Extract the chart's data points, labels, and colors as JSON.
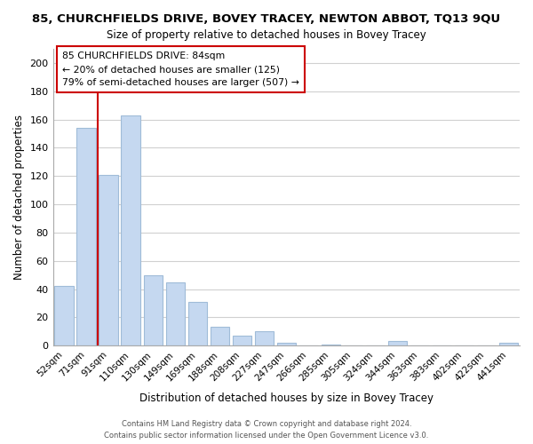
{
  "title": "85, CHURCHFIELDS DRIVE, BOVEY TRACEY, NEWTON ABBOT, TQ13 9QU",
  "subtitle": "Size of property relative to detached houses in Bovey Tracey",
  "xlabel": "Distribution of detached houses by size in Bovey Tracey",
  "ylabel": "Number of detached properties",
  "categories": [
    "52sqm",
    "71sqm",
    "91sqm",
    "110sqm",
    "130sqm",
    "149sqm",
    "169sqm",
    "188sqm",
    "208sqm",
    "227sqm",
    "247sqm",
    "266sqm",
    "285sqm",
    "305sqm",
    "324sqm",
    "344sqm",
    "363sqm",
    "383sqm",
    "402sqm",
    "422sqm",
    "441sqm"
  ],
  "values": [
    42,
    154,
    121,
    163,
    50,
    45,
    31,
    13,
    7,
    10,
    2,
    0,
    1,
    0,
    0,
    3,
    0,
    0,
    0,
    0,
    2
  ],
  "bar_color": "#c5d8f0",
  "bar_edge_color": "#a0bcd8",
  "ref_line_color": "#cc0000",
  "ref_line_x": 1.5,
  "ylim": [
    0,
    210
  ],
  "yticks": [
    0,
    20,
    40,
    60,
    80,
    100,
    120,
    140,
    160,
    180,
    200
  ],
  "annotation_title": "85 CHURCHFIELDS DRIVE: 84sqm",
  "annotation_line1": "← 20% of detached houses are smaller (125)",
  "annotation_line2": "79% of semi-detached houses are larger (507) →",
  "footer_line1": "Contains HM Land Registry data © Crown copyright and database right 2024.",
  "footer_line2": "Contains public sector information licensed under the Open Government Licence v3.0.",
  "background_color": "#ffffff",
  "grid_color": "#d0d0d0"
}
